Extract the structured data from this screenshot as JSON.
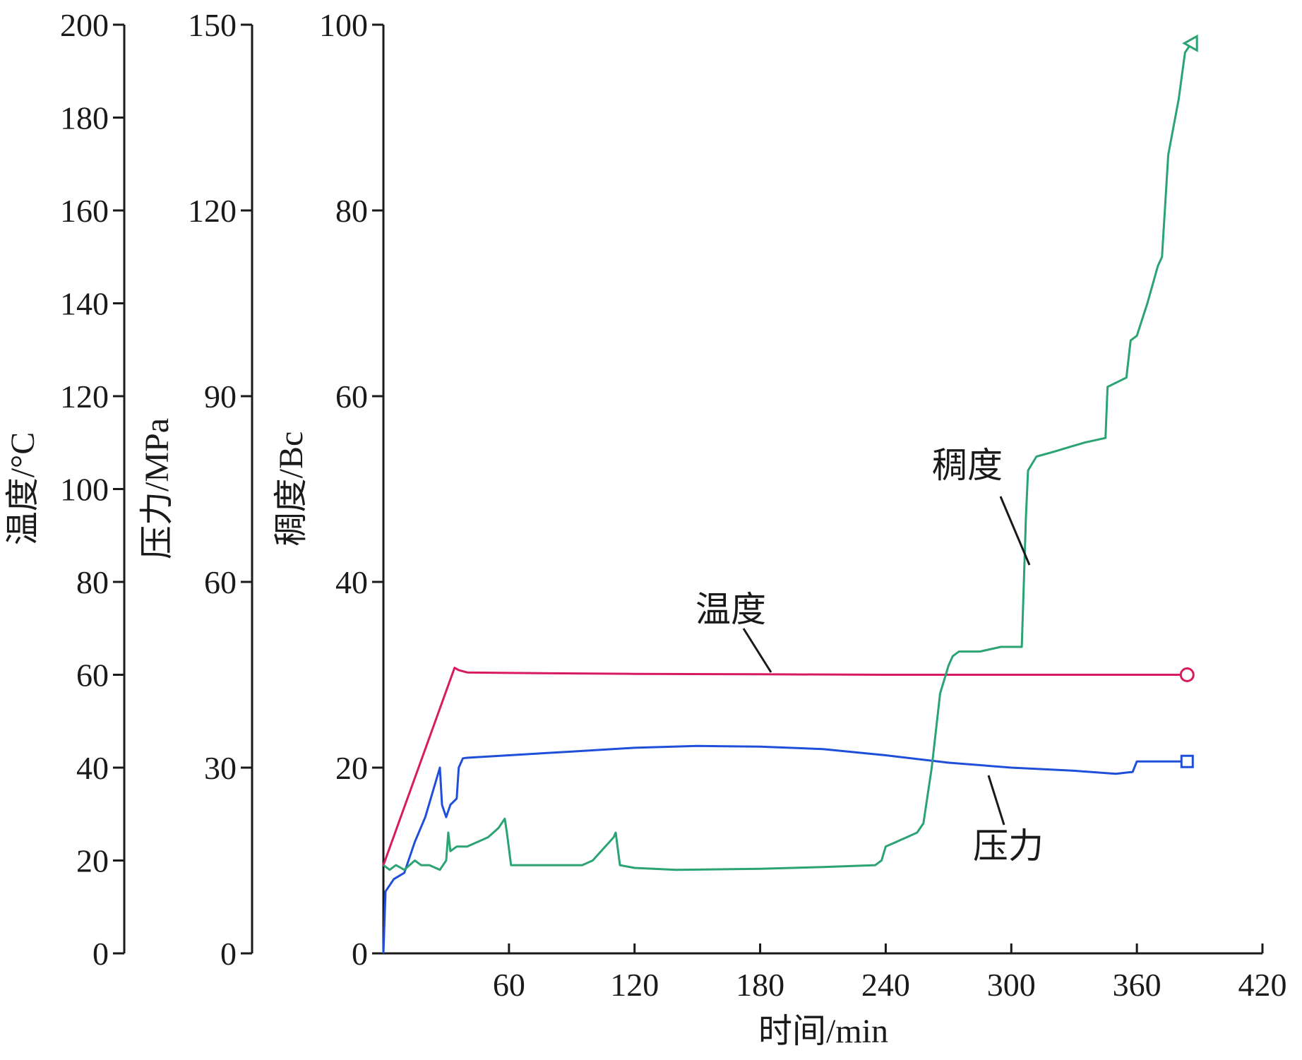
{
  "chart_data": {
    "type": "line",
    "xlabel": "时间/min",
    "xlim": [
      0,
      420
    ],
    "xticks": [
      60,
      120,
      180,
      240,
      300,
      360,
      420
    ],
    "axes": [
      {
        "id": "temp",
        "ylabel": "温度/°C",
        "ylim": [
          0,
          200
        ],
        "ticks": [
          0,
          20,
          40,
          60,
          80,
          100,
          120,
          140,
          160,
          180,
          200
        ]
      },
      {
        "id": "pressure",
        "ylabel": "压力/MPa",
        "ylim": [
          0,
          150
        ],
        "ticks": [
          0,
          30,
          60,
          90,
          120,
          150
        ]
      },
      {
        "id": "consistency",
        "ylabel": "稠度/Bc",
        "ylim": [
          0,
          100
        ],
        "ticks": [
          0,
          20,
          40,
          60,
          80,
          100
        ]
      }
    ],
    "series": [
      {
        "name": "温度",
        "axis": "temp",
        "color": "#d81b60",
        "marker": "circle",
        "x": [
          0,
          34,
          36,
          40,
          60,
          120,
          180,
          240,
          300,
          360,
          384
        ],
        "y": [
          19,
          61.5,
          61,
          60.5,
          60.4,
          60.2,
          60.1,
          60.0,
          60.0,
          60.0,
          60.0
        ]
      },
      {
        "name": "压力",
        "axis": "pressure",
        "color": "#1f4fd8",
        "marker": "square",
        "x": [
          0,
          1,
          5,
          10,
          15,
          20,
          27,
          28,
          30,
          32,
          35,
          36,
          38,
          40,
          60,
          90,
          120,
          150,
          180,
          210,
          240,
          270,
          300,
          330,
          350,
          355,
          358,
          360,
          370,
          384
        ],
        "y": [
          0,
          10,
          12,
          13,
          18,
          22,
          30,
          24,
          22,
          24,
          25,
          30,
          31.5,
          31.6,
          32,
          32.6,
          33.2,
          33.5,
          33.4,
          33.0,
          32.0,
          30.8,
          30.0,
          29.5,
          29.0,
          29.2,
          29.3,
          31.0,
          31.0,
          31.0
        ]
      },
      {
        "name": "稠度",
        "axis": "consistency",
        "color": "#2ba373",
        "marker": "triangle",
        "x": [
          0,
          3,
          6,
          10,
          15,
          18,
          22,
          27,
          30,
          31,
          32,
          35,
          40,
          50,
          55,
          58,
          59,
          61,
          65,
          75,
          95,
          100,
          110,
          111,
          113,
          120,
          140,
          180,
          210,
          235,
          238,
          240,
          245,
          250,
          255,
          258,
          262,
          266,
          270,
          272,
          275,
          285,
          295,
          305,
          306,
          307,
          308,
          312,
          320,
          335,
          345,
          346,
          355,
          357,
          360,
          365,
          370,
          372,
          375,
          380,
          383,
          386
        ],
        "y": [
          9.5,
          9,
          9.5,
          9,
          10,
          9.5,
          9.5,
          9,
          10,
          13,
          11,
          11.5,
          11.5,
          12.5,
          13.5,
          14.5,
          13,
          9.5,
          9.5,
          9.5,
          9.5,
          10,
          12.5,
          13,
          9.5,
          9.2,
          9,
          9.1,
          9.3,
          9.5,
          10,
          11.5,
          12,
          12.5,
          13,
          14,
          20,
          28,
          31,
          32,
          32.5,
          32.5,
          33,
          33,
          40,
          47,
          52,
          53.5,
          54,
          55,
          55.5,
          61,
          62,
          66,
          66.5,
          70,
          74,
          75,
          86,
          92,
          97,
          98
        ]
      }
    ]
  }
}
